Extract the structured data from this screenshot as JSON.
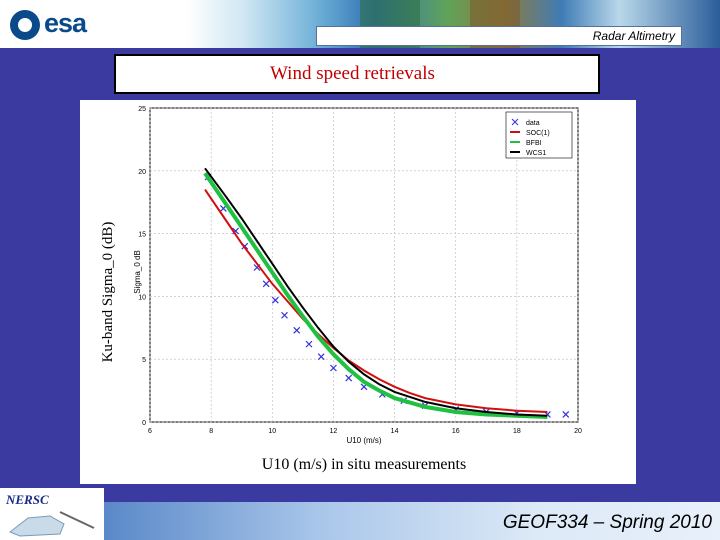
{
  "header": {
    "logo_text": "esa",
    "section_label": "Radar Altimetry"
  },
  "slide": {
    "title": "Wind speed retrievals",
    "footer": "GEOF334 – Spring 2010",
    "org_logo_text": "NERSC"
  },
  "figure": {
    "inner_ylabel": "Sigma_0 dB",
    "inner_xlabel": "U10 (m/s)",
    "outer_ylabel": "Ku-band Sigma_0 (dB)",
    "outer_xlabel": "U10 (m/s) in situ measurements",
    "legend": [
      "data",
      "SOC(1)",
      "BFBI",
      "WCS1"
    ]
  },
  "chart_data": {
    "type": "scatter",
    "xlabel": "U10 (m/s) in situ measurements",
    "ylabel": "Ku-band Sigma_0 (dB)",
    "xlim": [
      6,
      20
    ],
    "ylim": [
      0,
      25
    ],
    "x_ticks": [
      6,
      8,
      10,
      12,
      14,
      16,
      18,
      20
    ],
    "y_ticks": [
      0,
      5,
      10,
      15,
      20,
      25
    ],
    "grid": true,
    "legend_position": "top-right",
    "series": [
      {
        "name": "data",
        "color": "#3030e0",
        "marker": "x",
        "x": [
          7.9,
          8.4,
          8.8,
          9.1,
          9.5,
          9.8,
          10.1,
          10.4,
          10.8,
          11.2,
          11.6,
          12.0,
          12.5,
          13.0,
          13.6,
          14.3,
          15.0,
          16.0,
          17.0,
          18.0,
          19.0,
          19.6
        ],
        "y": [
          19.5,
          17.0,
          15.2,
          14.0,
          12.3,
          11.0,
          9.7,
          8.5,
          7.3,
          6.2,
          5.2,
          4.3,
          3.5,
          2.8,
          2.2,
          1.7,
          1.3,
          1.0,
          0.8,
          0.7,
          0.6,
          0.6
        ]
      },
      {
        "name": "SOC(1)",
        "color": "#d01010",
        "x": [
          7.8,
          8.5,
          9.0,
          9.5,
          10.0,
          10.5,
          11.0,
          11.5,
          12.0,
          12.5,
          13.0,
          13.5,
          14.0,
          14.5,
          15.0,
          16.0,
          17.0,
          18.0,
          19.0
        ],
        "y": [
          18.5,
          16.0,
          14.2,
          12.6,
          11.0,
          9.6,
          8.2,
          7.0,
          5.9,
          4.9,
          4.1,
          3.4,
          2.8,
          2.3,
          1.9,
          1.4,
          1.1,
          0.9,
          0.8
        ]
      },
      {
        "name": "BFBI",
        "color": "#20c040",
        "x": [
          7.8,
          8.5,
          9.0,
          9.5,
          10.0,
          10.5,
          11.0,
          11.5,
          12.0,
          12.5,
          13.0,
          13.5,
          14.0,
          15.0,
          16.0,
          17.0,
          18.0,
          19.0
        ],
        "y": [
          19.8,
          17.3,
          15.5,
          13.7,
          11.9,
          10.1,
          8.4,
          6.8,
          5.4,
          4.2,
          3.2,
          2.5,
          1.9,
          1.2,
          0.8,
          0.6,
          0.5,
          0.4
        ]
      },
      {
        "name": "WCS1",
        "color": "#000000",
        "x": [
          7.8,
          8.5,
          9.0,
          9.5,
          10.0,
          10.5,
          11.0,
          11.5,
          12.0,
          12.5,
          13.0,
          13.5,
          14.0,
          15.0,
          16.0,
          17.0,
          18.0,
          19.0
        ],
        "y": [
          20.2,
          17.9,
          16.2,
          14.4,
          12.6,
          10.8,
          9.1,
          7.5,
          6.0,
          4.8,
          3.8,
          3.0,
          2.4,
          1.6,
          1.1,
          0.8,
          0.6,
          0.5
        ]
      }
    ]
  }
}
